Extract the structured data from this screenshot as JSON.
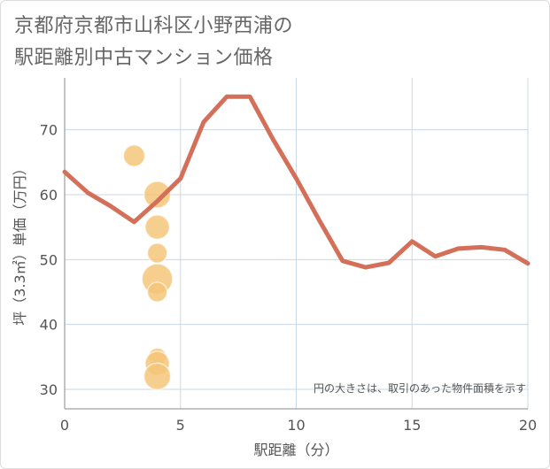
{
  "title_lines": [
    "京都府京都市山科区小野西浦の",
    "駅距離別中古マンション価格"
  ],
  "chart_data": {
    "type": "scatter+line",
    "title": "京都府京都市山科区小野西浦の駅距離別中古マンション価格",
    "xlabel": "駅距離（分）",
    "ylabel": "坪（3.3㎡）単価（万円）",
    "xlim": [
      0,
      20
    ],
    "ylim": [
      27,
      78
    ],
    "xticks": [
      0,
      5,
      10,
      15,
      20
    ],
    "yticks": [
      30,
      40,
      50,
      60,
      70
    ],
    "note": "円の大きさは、取引のあった物件面積を示す",
    "colors": {
      "line": "#d4705a",
      "bubble": "#f5c57a",
      "grid": "#c9d8e6",
      "axis": "#888888"
    },
    "line": {
      "x": [
        0,
        1,
        2,
        3,
        4,
        5,
        6,
        7,
        8,
        9,
        10,
        11,
        12,
        13,
        14,
        15,
        16,
        17,
        18,
        19,
        20
      ],
      "y": [
        63.5,
        60.3,
        58.2,
        55.8,
        59,
        62.5,
        71.2,
        75.1,
        75.1,
        68.5,
        62.5,
        56,
        49.8,
        48.8,
        49.5,
        52.8,
        50.5,
        51.7,
        51.9,
        51.5,
        49.4
      ]
    },
    "points": [
      {
        "x": 3,
        "y": 66,
        "size": 2
      },
      {
        "x": 4,
        "y": 60,
        "size": 4
      },
      {
        "x": 4,
        "y": 55,
        "size": 3
      },
      {
        "x": 4,
        "y": 51,
        "size": 1.5
      },
      {
        "x": 4,
        "y": 47,
        "size": 6
      },
      {
        "x": 4,
        "y": 45,
        "size": 1.5
      },
      {
        "x": 4,
        "y": 35,
        "size": 1
      },
      {
        "x": 4,
        "y": 34,
        "size": 3
      },
      {
        "x": 4,
        "y": 32,
        "size": 4
      }
    ]
  }
}
